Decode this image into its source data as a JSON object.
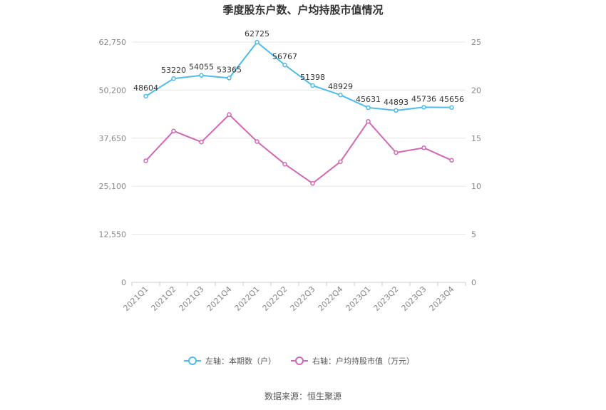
{
  "chart_data": {
    "type": "line",
    "title": "季度股东户数、户均持股市值情况",
    "categories": [
      "2021Q1",
      "2021Q2",
      "2021Q3",
      "2021Q4",
      "2022Q1",
      "2022Q2",
      "2022Q3",
      "2022Q4",
      "2023Q1",
      "2023Q2",
      "2023Q3",
      "2023Q4"
    ],
    "left_axis": {
      "min": 0,
      "max": 62750,
      "ticks": [
        "0",
        "12,550",
        "25,100",
        "37,650",
        "50,200",
        "62,750"
      ],
      "tick_values": [
        0,
        12550,
        25100,
        37650,
        50200,
        62750
      ]
    },
    "right_axis": {
      "min": 0,
      "max": 25,
      "ticks": [
        "0",
        "5",
        "10",
        "15",
        "20",
        "25"
      ],
      "tick_values": [
        0,
        5,
        10,
        15,
        20,
        25
      ]
    },
    "series": [
      {
        "name": "左轴：本期数（户）",
        "axis": "left",
        "color": "#4dbbeb",
        "values": [
          48604,
          53220,
          54055,
          53365,
          62725,
          56767,
          51398,
          48929,
          45631,
          44893,
          45736,
          45656
        ],
        "labels": [
          "48604",
          "53220",
          "54055",
          "53365",
          "62725",
          "56767",
          "51398",
          "48929",
          "45631",
          "44893",
          "45736",
          "45656"
        ]
      },
      {
        "name": "右轴：户均持股市值（万元）",
        "axis": "right",
        "color": "#d268b4",
        "values": [
          12.65,
          15.75,
          14.6,
          17.45,
          14.65,
          12.3,
          10.3,
          12.55,
          16.75,
          13.5,
          14.0,
          12.7
        ]
      }
    ],
    "legend_position": "bottom",
    "grid": true
  },
  "source": "数据来源：恒生聚源"
}
